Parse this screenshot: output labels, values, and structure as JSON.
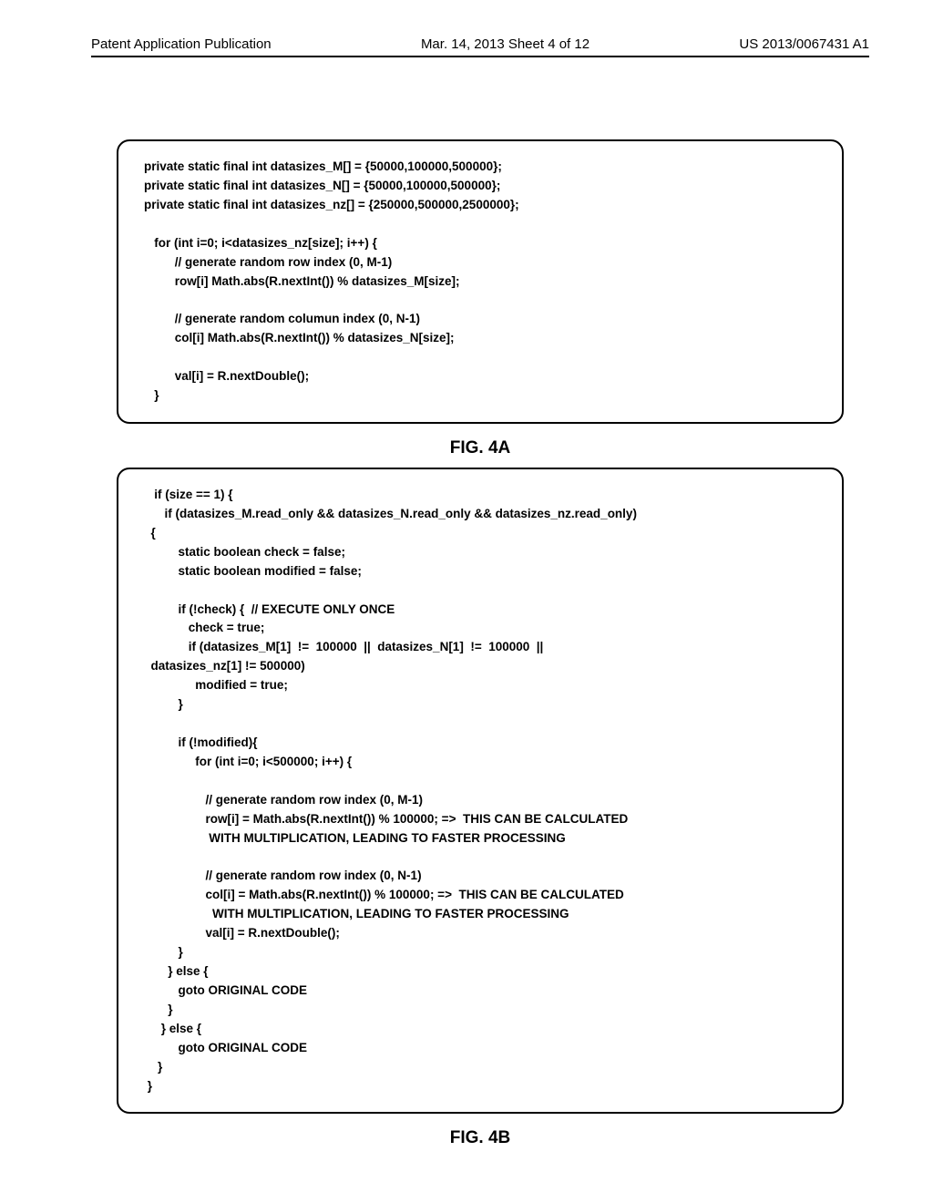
{
  "header": {
    "left": "Patent Application Publication",
    "mid": "Mar. 14, 2013  Sheet 4 of 12",
    "right": "US 2013/0067431 A1"
  },
  "figA": {
    "label": "FIG. 4A",
    "code": "private static final int datasizes_M[] = {50000,100000,500000};\nprivate static final int datasizes_N[] = {50000,100000,500000};\nprivate static final int datasizes_nz[] = {250000,500000,2500000};\n\n   for (int i=0; i<datasizes_nz[size]; i++) {\n         // generate random row index (0, M-1)\n         row[i] Math.abs(R.nextInt()) % datasizes_M[size];\n\n         // generate random columun index (0, N-1)\n         col[i] Math.abs(R.nextInt()) % datasizes_N[size];\n\n         val[i] = R.nextDouble();\n   }"
  },
  "figB": {
    "label": "FIG. 4B",
    "code": "   if (size == 1) {\n      if (datasizes_M.read_only && datasizes_N.read_only && datasizes_nz.read_only)\n  {\n          static boolean check = false;\n          static boolean modified = false;\n\n          if (!check) {  // EXECUTE ONLY ONCE\n             check = true;\n             if (datasizes_M[1]  !=  100000  ||  datasizes_N[1]  !=  100000  ||\n  datasizes_nz[1] != 500000)\n               modified = true;\n          }\n\n          if (!modified){\n               for (int i=0; i<500000; i++) {\n\n                  // generate random row index (0, M-1)\n                  row[i] = Math.abs(R.nextInt()) % 100000; =>  THIS CAN BE CALCULATED\n                   WITH MULTIPLICATION, LEADING TO FASTER PROCESSING\n\n                  // generate random row index (0, N-1)\n                  col[i] = Math.abs(R.nextInt()) % 100000; =>  THIS CAN BE CALCULATED\n                    WITH MULTIPLICATION, LEADING TO FASTER PROCESSING\n                  val[i] = R.nextDouble();\n          }\n       } else {\n          goto ORIGINAL CODE\n       }\n     } else {\n          goto ORIGINAL CODE\n    }\n }"
  }
}
